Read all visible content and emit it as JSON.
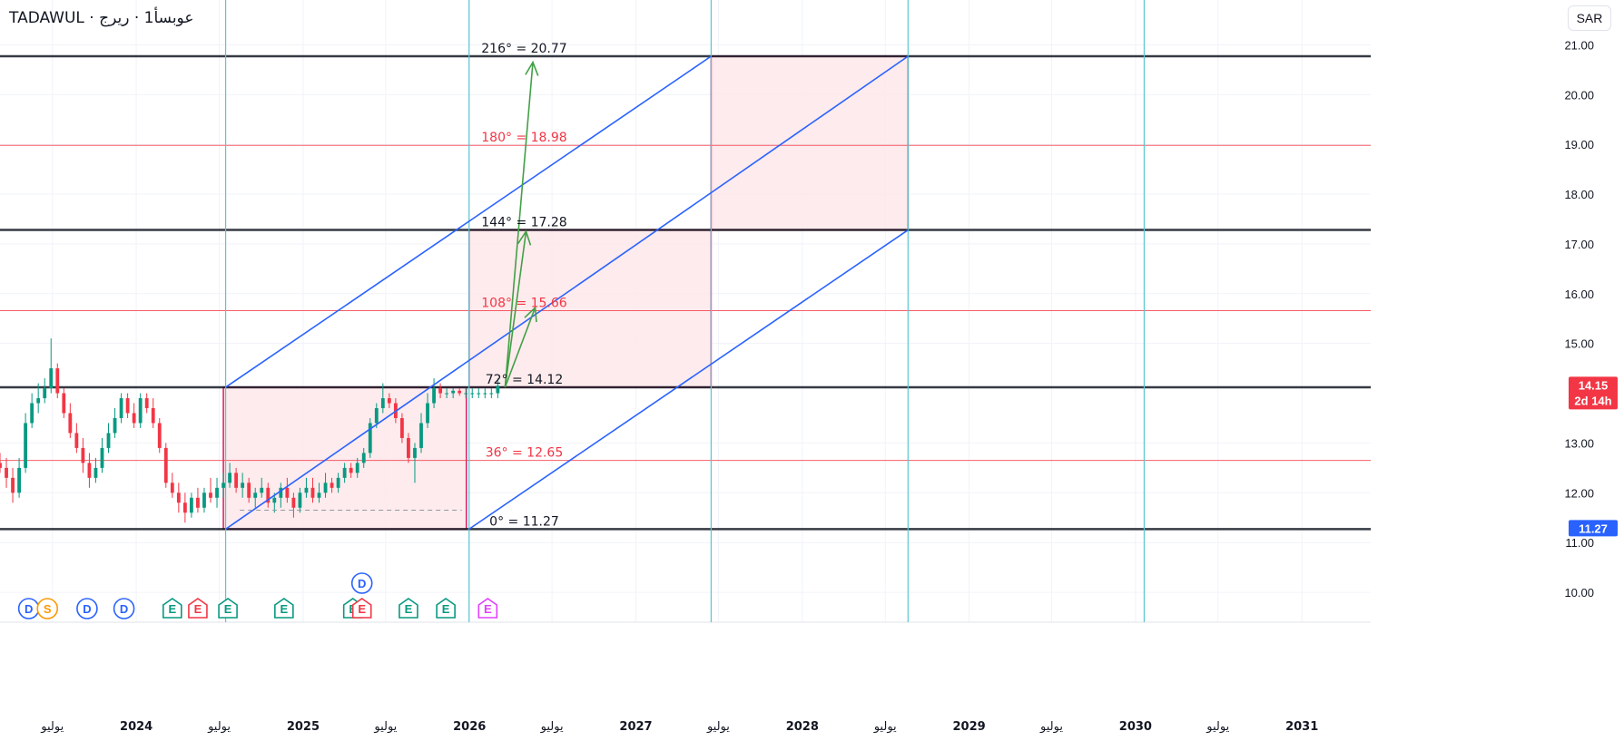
{
  "header": {
    "symbol_title": "TADAWUL · عوبسأ1 · ريرج",
    "currency_label": "SAR"
  },
  "colors": {
    "candle_up": "#089981",
    "candle_down": "#f23645",
    "blue_line": "#2962ff",
    "green_arrow": "#43a047",
    "box_border": "#d81b60",
    "box_fill": "#fde7ea",
    "cyan_line": "#5cc6d0",
    "red_level": "#f23645",
    "dark_level": "#131722",
    "dividend": "#2962ff",
    "split": "#ff9800",
    "earnings_up": "#089981",
    "earnings_down": "#f23645",
    "earnings_future": "#e040fb"
  },
  "chart_data": {
    "type": "candlestick",
    "y_axis": {
      "ticks": [
        "21.00",
        "20.00",
        "19.00",
        "18.00",
        "17.00",
        "16.00",
        "15.00",
        "13.00",
        "12.00",
        "11.00",
        "10.00"
      ],
      "range": [
        9.4,
        21.9
      ]
    },
    "x_axis": {
      "ticks": [
        {
          "date": "2023-07-01",
          "label": "يوليو",
          "bold": false
        },
        {
          "date": "2024-01-01",
          "label": "2024",
          "bold": true
        },
        {
          "date": "2024-07-01",
          "label": "يوليو",
          "bold": false
        },
        {
          "date": "2025-01-01",
          "label": "2025",
          "bold": true
        },
        {
          "date": "2025-07-01",
          "label": "يوليو",
          "bold": false
        },
        {
          "date": "2026-01-01",
          "label": "2026",
          "bold": true
        },
        {
          "date": "2026-07-01",
          "label": "يوليو",
          "bold": false
        },
        {
          "date": "2027-01-01",
          "label": "2027",
          "bold": true
        },
        {
          "date": "2027-07-01",
          "label": "يوليو",
          "bold": false
        },
        {
          "date": "2028-01-01",
          "label": "2028",
          "bold": true
        },
        {
          "date": "2028-07-01",
          "label": "يوليو",
          "bold": false
        },
        {
          "date": "2029-01-01",
          "label": "2029",
          "bold": true
        },
        {
          "date": "2029-07-01",
          "label": "يوليو",
          "bold": false
        },
        {
          "date": "2030-01-01",
          "label": "2030",
          "bold": true
        },
        {
          "date": "2030-07-01",
          "label": "يوليو",
          "bold": false
        },
        {
          "date": "2031-01-01",
          "label": "2031",
          "bold": true
        }
      ],
      "range": [
        "2023-03-08",
        "2031-06-01"
      ]
    },
    "series": [
      {
        "x": [
          "2023-03-08",
          "2023-03-22",
          "2023-04-05",
          "2023-04-19",
          "2023-05-03",
          "2023-05-17",
          "2023-05-31",
          "2023-06-14",
          "2023-06-28",
          "2023-07-12",
          "2023-07-26",
          "2023-08-09",
          "2023-08-23",
          "2023-09-06",
          "2023-09-20",
          "2023-10-04",
          "2023-10-18",
          "2023-11-01",
          "2023-11-15",
          "2023-11-29",
          "2023-12-13",
          "2023-12-27",
          "2024-01-10",
          "2024-01-24",
          "2024-02-07",
          "2024-02-21",
          "2024-03-06",
          "2024-03-20",
          "2024-04-03",
          "2024-04-17",
          "2024-05-01",
          "2024-05-15",
          "2024-05-29",
          "2024-06-12",
          "2024-06-26",
          "2024-07-10",
          "2024-07-24",
          "2024-08-07",
          "2024-08-21",
          "2024-09-04",
          "2024-09-18",
          "2024-10-02",
          "2024-10-16",
          "2024-10-30",
          "2024-11-13",
          "2024-11-27",
          "2024-12-11",
          "2024-12-25",
          "2025-01-08",
          "2025-01-22",
          "2025-02-05",
          "2025-02-19",
          "2025-03-05",
          "2025-03-19",
          "2025-04-02",
          "2025-04-16",
          "2025-04-30",
          "2025-05-14",
          "2025-05-28",
          "2025-06-11",
          "2025-06-25",
          "2025-07-09",
          "2025-07-23",
          "2025-08-06",
          "2025-08-20",
          "2025-09-03",
          "2025-09-17",
          "2025-10-01",
          "2025-10-15",
          "2025-10-29",
          "2025-11-12",
          "2025-11-26",
          "2025-12-10",
          "2025-12-24",
          "2026-01-07",
          "2026-01-21",
          "2026-02-04",
          "2026-02-18",
          "2026-03-04"
        ],
        "open": [
          12.6,
          12.5,
          12.3,
          12.0,
          12.5,
          13.4,
          13.8,
          13.9,
          14.1,
          14.5,
          14.0,
          13.6,
          13.2,
          12.9,
          12.6,
          12.3,
          12.5,
          12.9,
          13.2,
          13.5,
          13.9,
          13.6,
          13.4,
          13.9,
          13.7,
          13.4,
          12.9,
          12.2,
          12.0,
          11.8,
          11.6,
          11.9,
          11.7,
          12.0,
          11.9,
          12.1,
          12.2,
          12.4,
          12.1,
          12.2,
          11.9,
          12.0,
          12.1,
          11.8,
          11.9,
          12.1,
          11.9,
          11.7,
          12.0,
          12.1,
          11.9,
          12.0,
          12.2,
          12.1,
          12.3,
          12.5,
          12.4,
          12.6,
          12.8,
          13.4,
          13.7,
          13.9,
          13.8,
          13.5,
          13.1,
          12.7,
          12.9,
          13.4,
          13.8,
          14.1,
          14.0,
          14.0,
          14.05,
          14.0,
          14.0,
          14.0,
          14.0,
          14.0,
          14.0
        ],
        "close": [
          12.5,
          12.3,
          12.0,
          12.5,
          13.4,
          13.8,
          13.9,
          14.1,
          14.5,
          14.0,
          13.6,
          13.2,
          12.9,
          12.6,
          12.3,
          12.5,
          12.9,
          13.2,
          13.5,
          13.9,
          13.6,
          13.4,
          13.9,
          13.7,
          13.4,
          12.9,
          12.2,
          12.0,
          11.8,
          11.6,
          11.9,
          11.7,
          12.0,
          11.9,
          12.1,
          12.2,
          12.4,
          12.1,
          12.2,
          11.9,
          12.0,
          12.1,
          11.8,
          11.9,
          12.1,
          11.9,
          11.7,
          12.0,
          12.1,
          11.9,
          12.0,
          12.2,
          12.1,
          12.3,
          12.5,
          12.4,
          12.6,
          12.8,
          13.4,
          13.7,
          13.9,
          13.8,
          13.5,
          13.1,
          12.7,
          12.9,
          13.4,
          13.8,
          14.1,
          14.0,
          14.0,
          14.05,
          14.0,
          14.0,
          14.0,
          14.0,
          14.0,
          14.0,
          14.15
        ],
        "high": [
          12.8,
          12.7,
          12.5,
          12.7,
          13.6,
          14.0,
          14.2,
          14.3,
          15.1,
          14.6,
          14.1,
          13.8,
          13.4,
          13.1,
          12.8,
          12.7,
          13.1,
          13.4,
          13.7,
          14.0,
          14.0,
          13.8,
          14.0,
          14.0,
          13.9,
          13.5,
          13.0,
          12.4,
          12.2,
          12.0,
          12.0,
          12.1,
          12.1,
          12.3,
          12.3,
          12.4,
          12.6,
          12.5,
          12.4,
          12.3,
          12.1,
          12.3,
          12.2,
          12.0,
          12.2,
          12.3,
          12.0,
          12.1,
          12.3,
          12.3,
          12.2,
          12.4,
          12.3,
          12.4,
          12.6,
          12.6,
          12.7,
          12.9,
          13.5,
          13.8,
          14.2,
          14.0,
          13.9,
          13.6,
          13.2,
          13.0,
          13.6,
          14.0,
          14.3,
          14.2,
          14.1,
          14.1,
          14.1,
          14.1,
          14.1,
          14.1,
          14.1,
          14.1,
          14.3
        ],
        "low": [
          12.4,
          12.1,
          11.8,
          11.9,
          12.4,
          13.3,
          13.6,
          13.8,
          14.0,
          13.9,
          13.5,
          13.1,
          12.8,
          12.4,
          12.1,
          12.2,
          12.4,
          12.8,
          13.1,
          13.4,
          13.5,
          13.3,
          13.3,
          13.6,
          13.3,
          12.8,
          12.1,
          11.9,
          11.6,
          11.4,
          11.5,
          11.6,
          11.6,
          11.8,
          11.7,
          11.9,
          12.1,
          12.0,
          11.9,
          11.8,
          11.7,
          11.9,
          11.7,
          11.6,
          11.7,
          11.8,
          11.5,
          11.6,
          11.9,
          11.8,
          11.8,
          11.9,
          12.0,
          12.0,
          12.2,
          12.3,
          12.3,
          12.5,
          12.7,
          13.3,
          13.6,
          13.7,
          13.4,
          13.0,
          12.6,
          12.2,
          12.8,
          13.3,
          13.7,
          13.9,
          13.9,
          13.9,
          13.95,
          13.9,
          13.9,
          13.9,
          13.9,
          13.9,
          13.9
        ]
      }
    ],
    "levels": [
      {
        "label": "216° = 20.77",
        "value": 20.77,
        "style": "dark"
      },
      {
        "label": "180° = 18.98",
        "value": 18.98,
        "style": "red"
      },
      {
        "label": "144° = 17.28",
        "value": 17.28,
        "style": "dark"
      },
      {
        "label": "108° = 15.66",
        "value": 15.66,
        "style": "red"
      },
      {
        "label": "72° = 14.12",
        "value": 14.12,
        "style": "dark"
      },
      {
        "label": "36° = 12.65",
        "value": 12.65,
        "style": "red"
      },
      {
        "label": "0° = 11.27",
        "value": 11.27,
        "style": "dark"
      }
    ],
    "vertical_lines": [
      "2024-07-15",
      "2025-12-31",
      "2027-06-15",
      "2028-08-20",
      "2030-01-20"
    ],
    "boxes": [
      {
        "x0": "2024-07-10",
        "x1": "2025-12-25",
        "y0": 11.27,
        "y1": 14.12
      },
      {
        "x0": "2025-12-31",
        "x1": "2027-06-15",
        "y0": 14.12,
        "y1": 17.28
      },
      {
        "x0": "2027-06-15",
        "x1": "2028-08-20",
        "y0": 17.28,
        "y1": 20.77
      }
    ],
    "diagonals": [
      {
        "x0": "2024-07-15",
        "y0": 14.12,
        "x1": "2027-06-15",
        "y1": 20.77
      },
      {
        "x0": "2024-07-15",
        "y0": 11.27,
        "x1": "2028-08-20",
        "y1": 20.77
      },
      {
        "x0": "2025-12-31",
        "y0": 11.27,
        "x1": "2028-08-20",
        "y1": 17.28
      }
    ],
    "arrows": [
      {
        "x0": "2026-03-20",
        "y0": 14.12,
        "x1": "2026-05-20",
        "y1": 20.65
      },
      {
        "x0": "2026-03-20",
        "y0": 14.12,
        "x1": "2026-05-05",
        "y1": 17.25
      },
      {
        "x0": "2026-03-20",
        "y0": 14.12,
        "x1": "2026-05-25",
        "y1": 15.72
      }
    ],
    "dashed_support": {
      "x0": "2024-08-15",
      "x1": "2025-12-15",
      "y": 11.65
    },
    "price_badges": [
      {
        "label": "14.15",
        "sub": "2d 14h",
        "value": 14.15,
        "color": "#f23645"
      },
      {
        "label": "11.27",
        "value": 11.27,
        "color": "#2962ff"
      }
    ],
    "events": [
      {
        "date": "2023-05-10",
        "letter": "D",
        "kind": "dividend",
        "row": 0
      },
      {
        "date": "2023-06-20",
        "letter": "S",
        "kind": "split",
        "row": 0
      },
      {
        "date": "2023-09-15",
        "letter": "D",
        "kind": "dividend",
        "row": 0
      },
      {
        "date": "2023-12-05",
        "letter": "D",
        "kind": "dividend",
        "row": 0
      },
      {
        "date": "2024-03-20",
        "letter": "E",
        "kind": "earnings_up",
        "row": 0
      },
      {
        "date": "2024-05-15",
        "letter": "E",
        "kind": "earnings_down",
        "row": 0
      },
      {
        "date": "2024-07-20",
        "letter": "E",
        "kind": "earnings_up",
        "row": 0
      },
      {
        "date": "2024-11-20",
        "letter": "E",
        "kind": "earnings_up",
        "row": 0
      },
      {
        "date": "2025-04-20",
        "letter": "E",
        "kind": "earnings_up",
        "row": 0
      },
      {
        "date": "2025-05-10",
        "letter": "E",
        "kind": "earnings_down",
        "row": 0
      },
      {
        "date": "2025-05-10",
        "letter": "D",
        "kind": "dividend",
        "row": 1
      },
      {
        "date": "2025-08-20",
        "letter": "E",
        "kind": "earnings_up",
        "row": 0
      },
      {
        "date": "2025-11-10",
        "letter": "E",
        "kind": "earnings_up",
        "row": 0
      },
      {
        "date": "2026-02-10",
        "letter": "E",
        "kind": "earnings_future",
        "row": 0
      }
    ]
  }
}
